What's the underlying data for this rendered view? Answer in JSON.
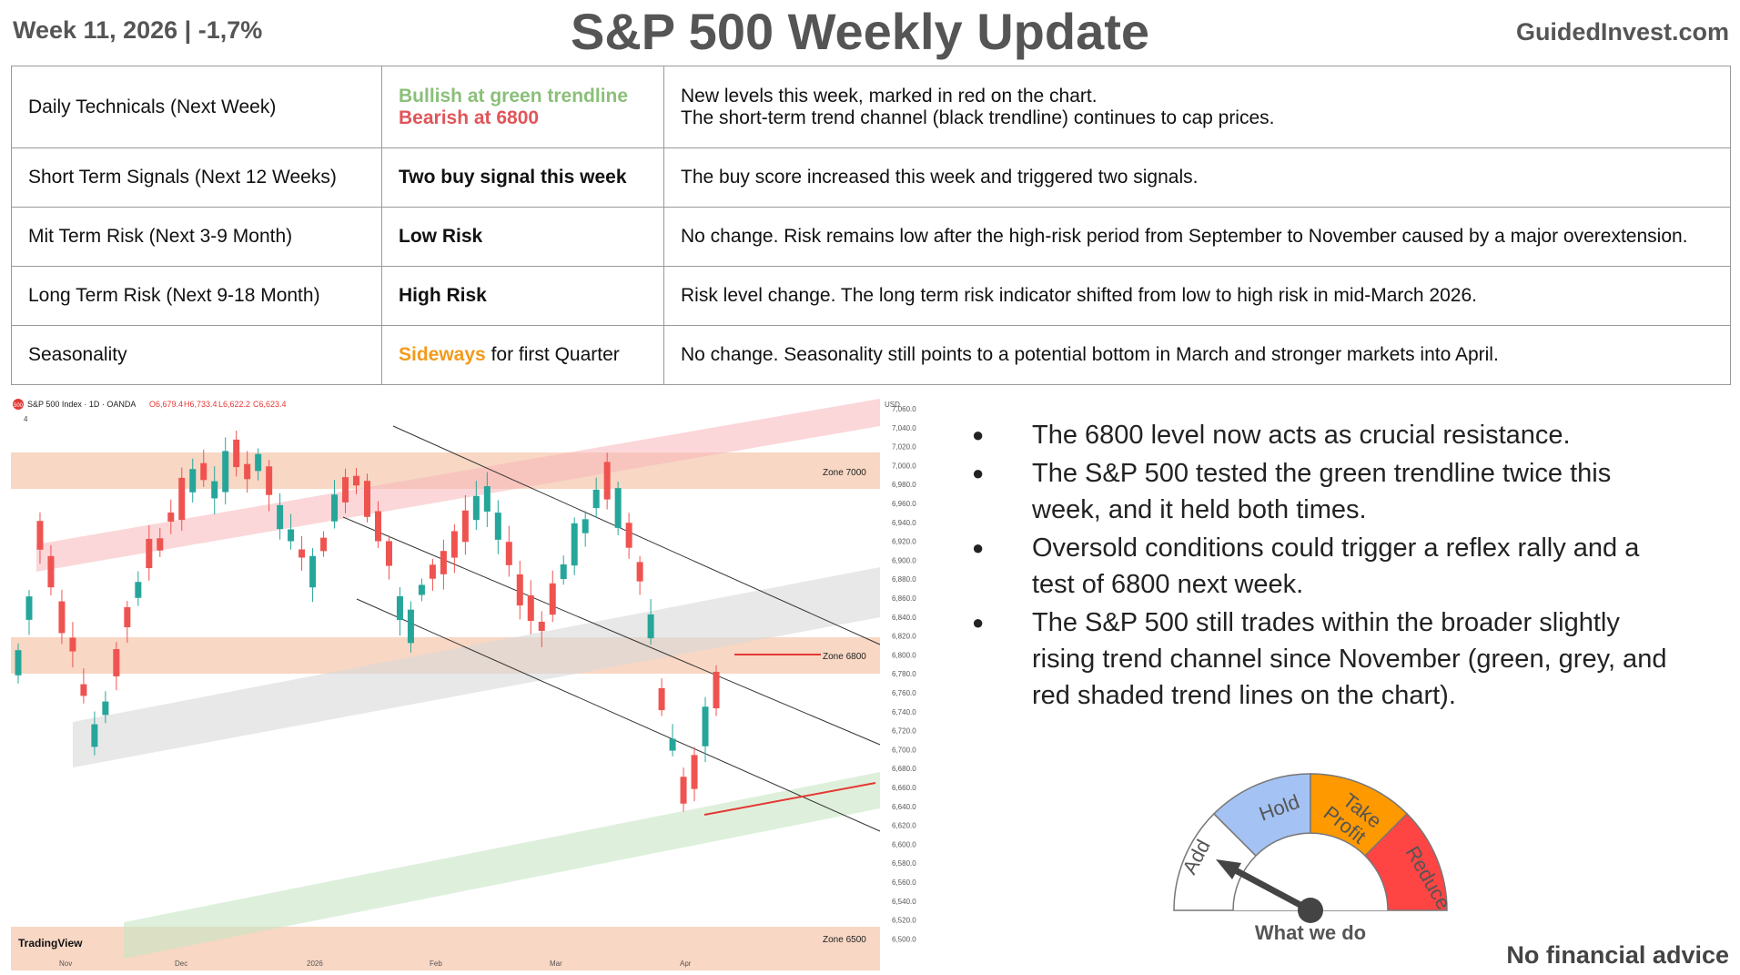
{
  "header": {
    "left": "Week 11, 2026 | -1,7%",
    "title": "S&P 500 Weekly Update",
    "right": "GuidedInvest.com"
  },
  "table": {
    "rows": [
      {
        "label": "Daily Technicals (Next Week)",
        "signal_line1": "Bullish at green trendline",
        "signal_line2": "Bearish at 6800",
        "note_line1": "New levels this week, marked in red on the chart.",
        "note_line2": "The short-term trend channel (black trendline) continues to cap prices."
      },
      {
        "label": "Short Term Signals (Next 12 Weeks)",
        "signal": "Two buy signal this week",
        "note": "The buy score increased this week and triggered two signals."
      },
      {
        "label": "Mit Term Risk (Next 3-9 Month)",
        "signal": "Low Risk",
        "note": "No change. Risk remains low after the high-risk period from September to November caused by a major overextension."
      },
      {
        "label": "Long Term Risk (Next 9-18 Month)",
        "signal": "High Risk",
        "note": "Risk level change. The long term risk indicator shifted from low to high risk in mid-March 2026."
      },
      {
        "label": "Seasonality",
        "signal_colored": "Sideways",
        "signal_rest": " for first Quarter",
        "note": "No change. Seasonality still points to a potential bottom in March and stronger markets into April."
      }
    ]
  },
  "chart": {
    "symbol_badge": "500",
    "header": "S&P 500 Index · 1D · OANDA",
    "ohlc": [
      "O6,679.4",
      "H6,733.4",
      "L6,622.2",
      "C6,623.4"
    ],
    "indicator_count": "4",
    "currency": "USD",
    "zones": [
      "Zone 7000",
      "Zone 6800",
      "Zone 6500"
    ],
    "y_ticks": [
      "7,060.0",
      "7,040.0",
      "7,020.0",
      "7,000.0",
      "6,980.0",
      "6,960.0",
      "6,940.0",
      "6,920.0",
      "6,900.0",
      "6,880.0",
      "6,860.0",
      "6,840.0",
      "6,820.0",
      "6,800.0",
      "6,780.0",
      "6,760.0",
      "6,740.0",
      "6,720.0",
      "6,700.0",
      "6,680.0",
      "6,660.0",
      "6,640.0",
      "6,620.0",
      "6,600.0",
      "6,580.0",
      "6,560.0",
      "6,540.0",
      "6,520.0",
      "6,500.0"
    ],
    "x_ticks": [
      "Nov",
      "Dec",
      "2026",
      "Feb",
      "Mar",
      "Apr"
    ],
    "watermark": "TradingView",
    "colors": {
      "up": "#26a69a",
      "down": "#ef5350",
      "zone": "#f6c9b0"
    }
  },
  "bullets": [
    "The 6800 level now acts as crucial resistance.",
    "The S&P 500 tested the green trendline twice this week, and it held both times.",
    "Oversold conditions could trigger a reflex rally and a test of 6800 next week.",
    "The S&P 500 still trades within the broader slightly rising trend channel since November (green, grey, and red shaded trend lines on the chart)."
  ],
  "gauge": {
    "segments": [
      "Add",
      "Hold",
      "Take Profit",
      "Reduce"
    ],
    "colors": [
      "#ffffff",
      "#a4c2f4",
      "#ff9900",
      "#ff4444"
    ],
    "pointer": "Add",
    "label": "What we do"
  },
  "footer": {
    "disclaimer": "No financial advice"
  }
}
